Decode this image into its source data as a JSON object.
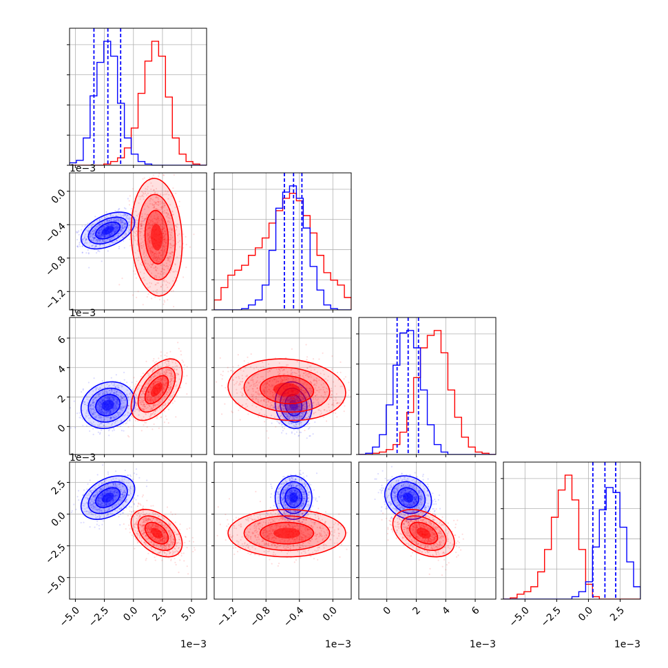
{
  "chart_data": {
    "type": "corner",
    "colors": {
      "series_a": "#0000ff",
      "series_b": "#ff0000",
      "grid": "#b0b0b0"
    },
    "grid": true,
    "quantiles_series_a": {
      "p0": [
        -3.4,
        -2.2,
        -1.1
      ],
      "p1": [
        -0.58,
        -0.47,
        -0.37
      ],
      "p2": [
        0.7,
        1.45,
        2.15
      ],
      "p3": [
        0.35,
        1.3,
        2.15
      ]
    },
    "params": [
      {
        "range": [
          -5.5,
          6.3
        ],
        "ticks": [
          -5.0,
          -2.5,
          0.0,
          2.5,
          5.0
        ],
        "tick_labels": [
          "−5.0",
          "−2.5",
          "0.0",
          "2.5",
          "5.0"
        ],
        "offset": "1e−3"
      },
      {
        "range": [
          -1.42,
          0.22
        ],
        "ticks": [
          -1.2,
          -0.8,
          -0.4,
          0.0
        ],
        "tick_labels": [
          "−1.2",
          "−0.8",
          "−0.4",
          "0.0"
        ],
        "offset": "1e−3"
      },
      {
        "range": [
          -1.9,
          7.4
        ],
        "ticks": [
          0,
          2,
          4,
          6
        ],
        "tick_labels": [
          "0",
          "2",
          "4",
          "6"
        ],
        "offset": "1e−3"
      },
      {
        "range": [
          -6.7,
          4.1
        ],
        "ticks": [
          -5.0,
          -2.5,
          0.0,
          2.5
        ],
        "tick_labels": [
          "−5.0",
          "−2.5",
          "0.0",
          "2.5"
        ],
        "offset": "1e−3"
      }
    ],
    "series": [
      {
        "color": "#0000ff",
        "mean": [
          -2.2,
          -0.47,
          1.45,
          1.3
        ],
        "std": [
          1.05,
          0.1,
          0.72,
          0.78
        ],
        "corr": {
          "1_0": 0.45,
          "2_0": 0.15,
          "2_1": -0.1,
          "3_0": 0.4,
          "3_1": 0.0,
          "3_2": -0.15
        }
      },
      {
        "color": "#ff0000",
        "mean": [
          2.0,
          -0.55,
          2.5,
          -1.5
        ],
        "std": [
          1.0,
          0.32,
          0.95,
          0.85
        ],
        "corr": {
          "1_0": -0.1,
          "2_0": 0.55,
          "2_1": -0.1,
          "3_0": -0.45,
          "3_1": 0.0,
          "3_2": -0.4
        }
      }
    ],
    "histograms": [
      {
        "bin_edges": [
          -5.5,
          -4.91,
          -4.32,
          -3.73,
          -3.14,
          -2.55,
          -1.96,
          -1.37,
          -0.78,
          -0.19,
          0.4,
          0.99,
          1.58,
          2.17,
          2.76,
          3.35,
          3.94,
          4.53,
          5.12,
          5.71,
          6.3
        ],
        "series_a": [
          2,
          4,
          22,
          56,
          83,
          100,
          88,
          50,
          22,
          9,
          3,
          1,
          0,
          0,
          0,
          0,
          0,
          0,
          0,
          0
        ],
        "series_b": [
          0,
          0,
          0,
          0,
          0,
          1,
          3,
          6,
          14,
          30,
          58,
          84,
          100,
          88,
          55,
          22,
          9,
          3,
          1,
          0
        ]
      },
      {
        "bin_edges": [
          -1.42,
          -1.338,
          -1.256,
          -1.174,
          -1.092,
          -1.01,
          -0.928,
          -0.846,
          -0.764,
          -0.682,
          -0.6,
          -0.518,
          -0.436,
          -0.354,
          -0.272,
          -0.19,
          -0.108,
          -0.026,
          0.056,
          0.138,
          0.22
        ],
        "series_a": [
          0,
          0,
          0,
          0,
          1,
          4,
          8,
          20,
          48,
          82,
          95,
          100,
          90,
          66,
          35,
          16,
          4,
          1,
          0,
          0
        ],
        "series_b": [
          8,
          18,
          28,
          32,
          36,
          44,
          50,
          58,
          70,
          80,
          90,
          94,
          88,
          76,
          62,
          44,
          30,
          24,
          20,
          10
        ]
      },
      {
        "bin_edges": [
          -1.9,
          -1.435,
          -0.97,
          -0.505,
          -0.04,
          0.425,
          0.89,
          1.355,
          1.82,
          2.285,
          2.75,
          3.215,
          3.68,
          4.145,
          4.61,
          5.075,
          5.54,
          6.005,
          6.47,
          6.935,
          7.4
        ],
        "series_a": [
          0,
          1,
          6,
          16,
          40,
          72,
          98,
          100,
          86,
          52,
          24,
          8,
          2,
          0,
          0,
          0,
          0,
          0,
          0,
          0
        ],
        "series_b": [
          0,
          0,
          1,
          2,
          4,
          8,
          18,
          34,
          62,
          86,
          96,
          100,
          82,
          52,
          30,
          14,
          6,
          2,
          1,
          0
        ]
      },
      {
        "bin_edges": [
          -6.7,
          -6.16,
          -5.62,
          -5.08,
          -4.54,
          -4.0,
          -3.46,
          -2.92,
          -2.38,
          -1.84,
          -1.3,
          -0.76,
          -0.22,
          0.32,
          0.86,
          1.4,
          1.94,
          2.48,
          3.02,
          3.56,
          4.1
        ],
        "series_a": [
          0,
          0,
          0,
          0,
          0,
          0,
          0,
          0,
          0,
          0,
          2,
          6,
          14,
          42,
          72,
          90,
          86,
          58,
          30,
          10
        ],
        "series_b": [
          0,
          1,
          4,
          6,
          10,
          22,
          40,
          66,
          88,
          100,
          80,
          40,
          12,
          2,
          0,
          0,
          0,
          0,
          0,
          0
        ]
      }
    ]
  }
}
